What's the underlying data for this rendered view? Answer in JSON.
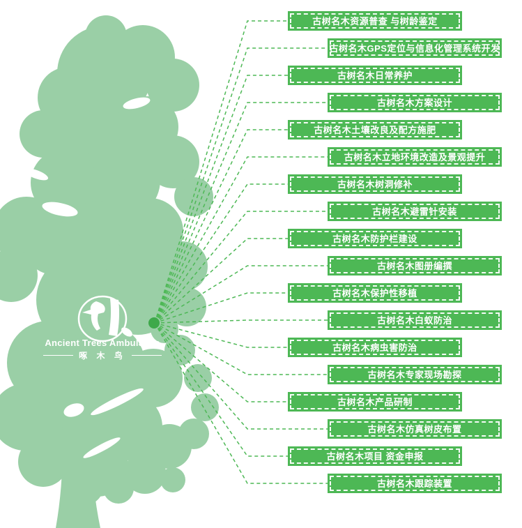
{
  "logo": {
    "title_en": "Ancient Trees Ambulance",
    "subtitle_zh": "啄 木 鸟"
  },
  "colors": {
    "tree_green": "#9ACFA6",
    "accent_green": "#4DB855",
    "node_green": "#3EA94A",
    "text_white": "#FFFFFF"
  },
  "services": [
    {
      "label": "古树名木资源普查 与树龄鉴定"
    },
    {
      "label": "古树名木GPS定位与信息化管理系统开发"
    },
    {
      "label": "古树名木日常养护"
    },
    {
      "label": "古树名木方案设计"
    },
    {
      "label": "古树名木土壤改良及配方施肥"
    },
    {
      "label": "古树名木立地环境改造及景观提升"
    },
    {
      "label": "古树名木树洞修补"
    },
    {
      "label": "古树名木避雷针安装"
    },
    {
      "label": "古树名木防护栏建设"
    },
    {
      "label": "古树名木图册编撰"
    },
    {
      "label": "古树名木保护性移植"
    },
    {
      "label": "古树名木白蚁防治"
    },
    {
      "label": "古树名木病虫害防治"
    },
    {
      "label": "古树名木专家现场勘探"
    },
    {
      "label": "古树名木产品研制"
    },
    {
      "label": "古树名木仿真树皮布置"
    },
    {
      "label": "古树名木项目 资金申报"
    },
    {
      "label": "古树名木跟踪装置"
    }
  ]
}
